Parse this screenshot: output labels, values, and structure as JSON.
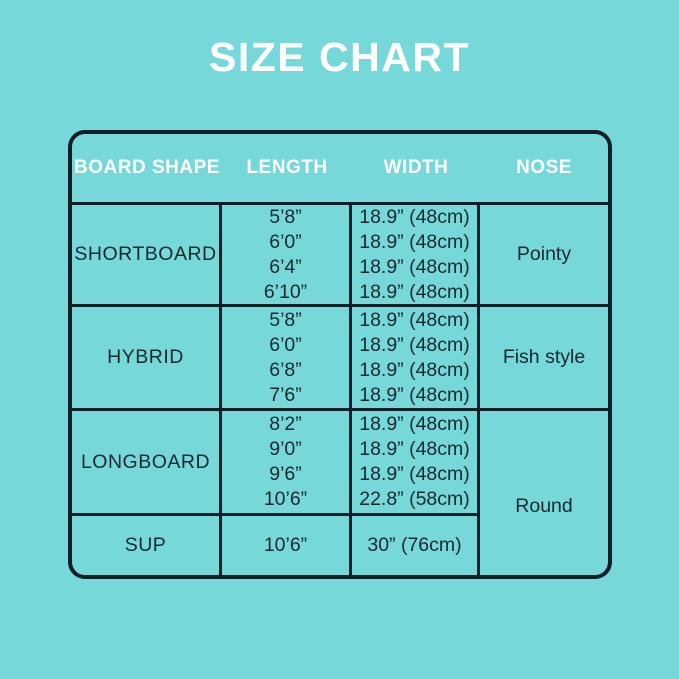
{
  "title": "SIZE CHART",
  "colors": {
    "background": "#77d8da",
    "table_lines": "#101f26",
    "header_text": "#ffffff",
    "body_text": "#13292e"
  },
  "chart_data": {
    "type": "table",
    "title": "SIZE CHART",
    "columns": [
      "BOARD SHAPE",
      "LENGTH",
      "WIDTH",
      "NOSE"
    ],
    "rows": [
      {
        "board_shape": "SHORTBOARD",
        "lengths": [
          "5’8”",
          "6’0”",
          "6’4”",
          "6’10”"
        ],
        "widths": [
          "18.9” (48cm)",
          "18.9” (48cm)",
          "18.9” (48cm)",
          "18.9” (48cm)"
        ],
        "nose": "Pointy"
      },
      {
        "board_shape": "HYBRID",
        "lengths": [
          "5’8”",
          "6’0”",
          "6’8”",
          "7’6”"
        ],
        "widths": [
          "18.9” (48cm)",
          "18.9” (48cm)",
          "18.9” (48cm)",
          "18.9” (48cm)"
        ],
        "nose": "Fish style"
      },
      {
        "board_shape": "LONGBOARD",
        "lengths": [
          "8’2”",
          "9’0”",
          "9’6”",
          "10’6”"
        ],
        "widths": [
          "18.9” (48cm)",
          "18.9” (48cm)",
          "18.9” (48cm)",
          "22.8” (58cm)"
        ],
        "nose": "Round"
      },
      {
        "board_shape": "SUP",
        "lengths": [
          "10’6”"
        ],
        "widths": [
          "30” (76cm)"
        ],
        "nose": "Round"
      }
    ]
  }
}
